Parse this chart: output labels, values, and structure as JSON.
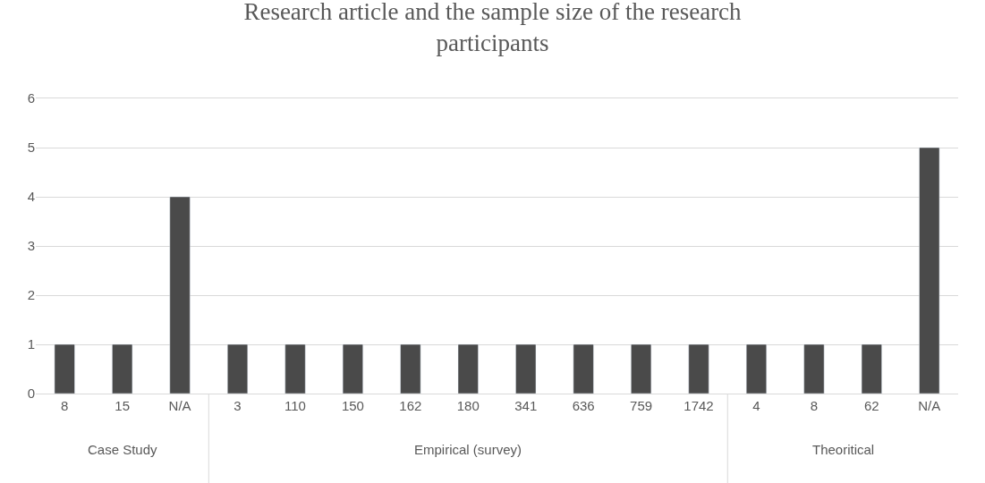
{
  "chart_data": {
    "type": "bar",
    "title": "Research article and the sample size of the research participants",
    "categories": [
      "8",
      "15",
      "N/A",
      "3",
      "110",
      "150",
      "162",
      "180",
      "341",
      "636",
      "759",
      "1742",
      "4",
      "8",
      "62",
      "N/A"
    ],
    "values": [
      1,
      1,
      4,
      1,
      1,
      1,
      1,
      1,
      1,
      1,
      1,
      1,
      1,
      1,
      1,
      5
    ],
    "color": "#4a4a4a",
    "ylim": [
      0,
      6
    ],
    "yticks": [
      0,
      1,
      2,
      3,
      4,
      5,
      6
    ],
    "grid": "y",
    "annotations": [
      "Case Study",
      "Empirical (survey)",
      "Theoritical"
    ]
  }
}
